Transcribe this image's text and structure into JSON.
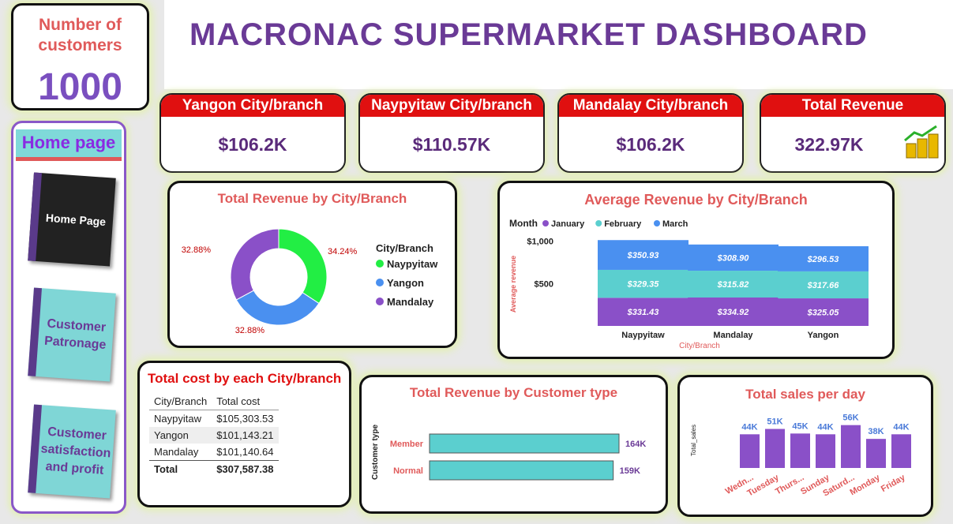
{
  "title": "MACRONAC SUPERMARKET DASHBOARD",
  "customers": {
    "label": "Number of customers",
    "value": "1000"
  },
  "nav": {
    "header": "Home page",
    "items": [
      "Home Page",
      "Customer Patronage",
      "Customer satisfaction and profit"
    ]
  },
  "kpis": [
    {
      "label": "Yangon City/branch",
      "value": "$106.2K"
    },
    {
      "label": "Naypyitaw City/branch",
      "value": "$110.57K"
    },
    {
      "label": "Mandalay City/branch",
      "value": "$106.2K"
    },
    {
      "label": "Total Revenue",
      "value": "322.97K"
    }
  ],
  "donut": {
    "title": "Total Revenue by City/Branch",
    "legend_title": "City/Branch",
    "chart_data": {
      "type": "pie",
      "categories": [
        "Naypyitaw",
        "Yangon",
        "Mandalay"
      ],
      "values": [
        34.24,
        32.88,
        32.88
      ],
      "labels": [
        "34.24%",
        "32.88%",
        "32.88%"
      ],
      "colors": [
        "#22ee44",
        "#4a90f0",
        "#8a50c8"
      ]
    }
  },
  "avg": {
    "title": "Average Revenue by City/Branch",
    "legend_title": "Month",
    "ylabel": "Average revenue",
    "xlabel": "City/Branch",
    "yticks": [
      "$1,000",
      "$500"
    ],
    "chart_data": {
      "type": "bar",
      "categories": [
        "Naypyitaw",
        "Mandalay",
        "Yangon"
      ],
      "series": [
        {
          "name": "January",
          "values": [
            331.43,
            334.92,
            325.05
          ],
          "labels": [
            "$331.43",
            "$334.92",
            "$325.05"
          ],
          "color": "#8a50c8"
        },
        {
          "name": "February",
          "values": [
            329.35,
            315.82,
            317.66
          ],
          "labels": [
            "$329.35",
            "$315.82",
            "$317.66"
          ],
          "color": "#5bcfcf"
        },
        {
          "name": "March",
          "values": [
            350.93,
            308.9,
            296.53
          ],
          "labels": [
            "$350.93",
            "$308.90",
            "$296.53"
          ],
          "color": "#4a90f0"
        }
      ]
    }
  },
  "cost": {
    "title": "Total cost by each City/branch",
    "headers": [
      "City/Branch",
      "Total cost"
    ],
    "rows": [
      [
        "Naypyitaw",
        "$105,303.53"
      ],
      [
        "Yangon",
        "$101,143.21"
      ],
      [
        "Mandalay",
        "$101,140.64"
      ]
    ],
    "total": [
      "Total",
      "$307,587.38"
    ]
  },
  "ctype": {
    "title": "Total Revenue by Customer type",
    "ylabel": "Customer type",
    "chart_data": {
      "type": "bar",
      "categories": [
        "Member",
        "Normal"
      ],
      "values": [
        164,
        159
      ],
      "labels": [
        "164K",
        "159K"
      ]
    }
  },
  "daily": {
    "title": "Total sales per day",
    "ylabel": "Total_sales",
    "chart_data": {
      "type": "bar",
      "categories": [
        "Wedn...",
        "Tuesday",
        "Thurs...",
        "Sunday",
        "Saturd...",
        "Monday",
        "Friday"
      ],
      "values": [
        44,
        51,
        45,
        44,
        56,
        38,
        44
      ],
      "labels": [
        "44K",
        "51K",
        "45K",
        "44K",
        "56K",
        "38K",
        "44K"
      ]
    }
  },
  "colors": {
    "accent": "#6a3a96",
    "title_red": "#e05a5a",
    "kpi_red": "#e01010",
    "bar_purple": "#8a50c8",
    "bar_teal": "#5bcfcf"
  }
}
